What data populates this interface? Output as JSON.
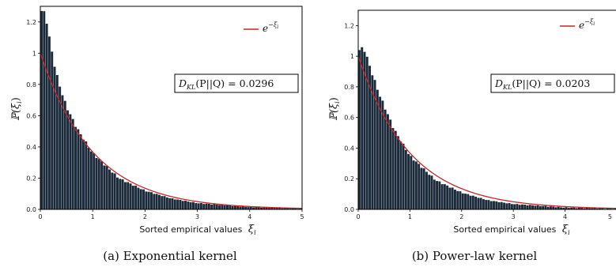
{
  "chart_data": [
    {
      "type": "bar",
      "title": "",
      "xlabel": "Sorted empirical values ξ_i",
      "xlabel_text": "Sorted empirical values",
      "xlabel_symbol": "ξ",
      "xlabel_sub": "i",
      "ylabel": "ℙ(ξ_i)",
      "ylabel_symbol": "ℙ(ξ",
      "ylabel_sub": "i",
      "ylabel_close": ")",
      "xlim": [
        0,
        5
      ],
      "ylim": [
        0,
        1.3
      ],
      "xticks": [
        "0",
        "1",
        "2",
        "3",
        "4",
        "5"
      ],
      "yticks": [
        "0.0",
        "0.2",
        "0.4",
        "0.6",
        "0.8",
        "1",
        "1.2"
      ],
      "histogram": {
        "bin_width": 0.05,
        "x": [
          0.05,
          0.1,
          0.15,
          0.2,
          0.3,
          0.4,
          0.5,
          0.7,
          1.0,
          1.5,
          2.0,
          2.5,
          3.0,
          4.0,
          5.0
        ],
        "y": [
          1.27,
          1.25,
          1.15,
          1.05,
          0.88,
          0.76,
          0.66,
          0.52,
          0.36,
          0.2,
          0.12,
          0.07,
          0.04,
          0.015,
          0.005
        ]
      },
      "reference_curve": {
        "legend": "e",
        "legend_sup": "−ξ",
        "legend_sup_sub": "i",
        "color": "#c0282d"
      },
      "annotation": {
        "lhs": "D",
        "lhs_sub": "KL",
        "args": "(P||Q) = ",
        "value": "0.0296"
      },
      "caption": "(a)  Exponential kernel",
      "bar_color": "#1b2a3a",
      "legend_position": "top-right"
    },
    {
      "type": "bar",
      "title": "",
      "xlabel": "Sorted empirical values ξ_i",
      "xlabel_text": "Sorted empirical values",
      "xlabel_symbol": "ξ",
      "xlabel_sub": "i",
      "ylabel": "ℙ(ξ_i)",
      "ylabel_symbol": "ℙ(ξ",
      "ylabel_sub": "i",
      "ylabel_close": ")",
      "xlim": [
        0,
        5
      ],
      "ylim": [
        0,
        1.3
      ],
      "xticks": [
        "0",
        "1",
        "2",
        "3",
        "4",
        "5"
      ],
      "yticks": [
        "0.0",
        "0.2",
        "0.4",
        "0.6",
        "0.8",
        "1",
        "1.2"
      ],
      "histogram": {
        "bin_width": 0.05,
        "x": [
          0.05,
          0.1,
          0.15,
          0.2,
          0.3,
          0.4,
          0.5,
          0.7,
          1.0,
          1.5,
          2.0,
          2.5,
          3.0,
          4.0,
          5.0
        ],
        "y": [
          1.04,
          1.06,
          1.02,
          0.96,
          0.86,
          0.76,
          0.68,
          0.52,
          0.35,
          0.19,
          0.11,
          0.06,
          0.035,
          0.012,
          0.004
        ]
      },
      "reference_curve": {
        "legend": "e",
        "legend_sup": "−ξ",
        "legend_sup_sub": "i",
        "color": "#c0282d"
      },
      "annotation": {
        "lhs": "D",
        "lhs_sub": "KL",
        "args": "(P||Q) = ",
        "value": "0.0203"
      },
      "caption": "(b)  Power-law kernel",
      "bar_color": "#1b2a3a",
      "legend_position": "top-right"
    }
  ]
}
